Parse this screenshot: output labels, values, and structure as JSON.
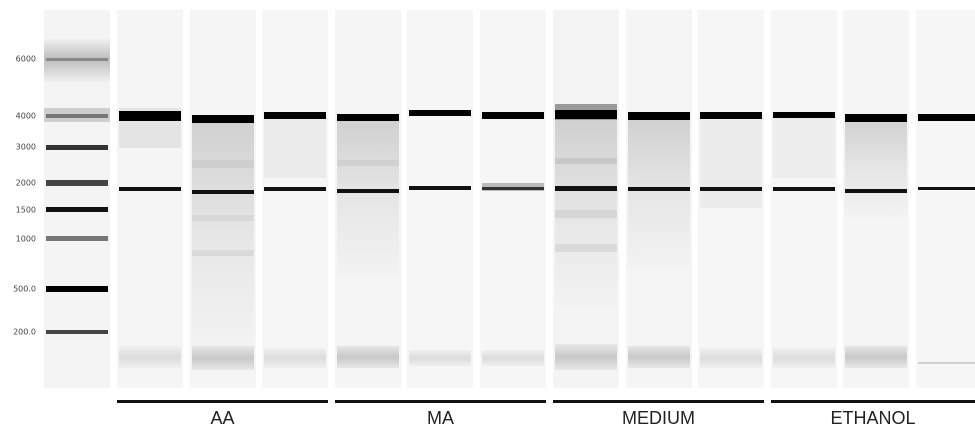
{
  "ladder": {
    "labels": [
      "6000",
      "4000",
      "3000",
      "2000",
      "1500",
      "1000",
      "500.0",
      "200.0"
    ]
  },
  "groups": [
    {
      "label": "AA"
    },
    {
      "label": "MA"
    },
    {
      "label": "MEDIUM"
    },
    {
      "label": "ETHANOL"
    }
  ],
  "colors": {
    "lane_background": "#f4f4f4",
    "band": "#000000",
    "text": "#222222"
  }
}
